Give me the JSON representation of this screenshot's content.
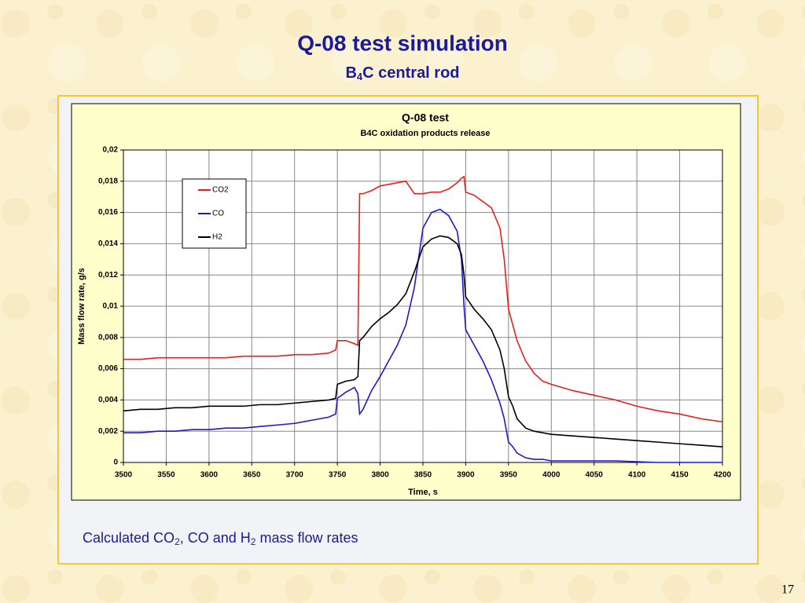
{
  "slide": {
    "title": "Q-08 test simulation",
    "subtitle": [
      "B",
      "4",
      "C central rod"
    ],
    "caption": [
      "Calculated CO",
      "2",
      ", CO and H",
      "2",
      " mass flow rates"
    ],
    "page_number": "17"
  },
  "chart_data": {
    "type": "line",
    "title": "Q-08 test",
    "subtitle": "B4C oxidation products release",
    "x_label": "Time, s",
    "y_label": "Mass flow rate, g/s",
    "x": [
      3500,
      3520,
      3540,
      3560,
      3580,
      3600,
      3620,
      3640,
      3660,
      3680,
      3700,
      3720,
      3740,
      3748,
      3750,
      3760,
      3770,
      3774,
      3776,
      3780,
      3790,
      3800,
      3810,
      3820,
      3830,
      3840,
      3850,
      3860,
      3870,
      3880,
      3890,
      3895,
      3898,
      3900,
      3910,
      3920,
      3930,
      3940,
      3945,
      3950,
      3955,
      3960,
      3970,
      3980,
      3990,
      4000,
      4025,
      4050,
      4075,
      4100,
      4125,
      4150,
      4175,
      4200
    ],
    "series": [
      {
        "name": "CO2",
        "color": "#e8201c",
        "values": [
          0.0066,
          0.0066,
          0.0067,
          0.0067,
          0.0067,
          0.0067,
          0.0067,
          0.0068,
          0.0068,
          0.0068,
          0.0069,
          0.0069,
          0.007,
          0.0072,
          0.0078,
          0.0078,
          0.0076,
          0.0075,
          0.0172,
          0.0172,
          0.0174,
          0.0177,
          0.0178,
          0.0179,
          0.018,
          0.0172,
          0.0172,
          0.0173,
          0.0173,
          0.0175,
          0.0179,
          0.0182,
          0.0183,
          0.0173,
          0.0171,
          0.0167,
          0.0163,
          0.015,
          0.013,
          0.0098,
          0.0088,
          0.0078,
          0.0065,
          0.0057,
          0.0052,
          0.005,
          0.0046,
          0.0043,
          0.004,
          0.0036,
          0.0033,
          0.0031,
          0.0028,
          0.0026
        ]
      },
      {
        "name": "CO",
        "color": "#1a1acc",
        "values": [
          0.0019,
          0.0019,
          0.002,
          0.002,
          0.0021,
          0.0021,
          0.0022,
          0.0022,
          0.0023,
          0.0024,
          0.0025,
          0.0027,
          0.0029,
          0.0031,
          0.0041,
          0.0045,
          0.0048,
          0.0044,
          0.0031,
          0.0034,
          0.0046,
          0.0055,
          0.0065,
          0.0075,
          0.0088,
          0.0112,
          0.015,
          0.016,
          0.0162,
          0.0158,
          0.0148,
          0.013,
          0.01,
          0.0085,
          0.0075,
          0.0065,
          0.0053,
          0.0038,
          0.0028,
          0.0013,
          0.001,
          0.0006,
          0.0003,
          0.0002,
          0.0002,
          0.0001,
          0.0001,
          0.0001,
          0.0001,
          5e-05,
          0,
          0,
          0,
          0
        ]
      },
      {
        "name": "H2",
        "color": "#000000",
        "values": [
          0.0033,
          0.0034,
          0.0034,
          0.0035,
          0.0035,
          0.0036,
          0.0036,
          0.0036,
          0.0037,
          0.0037,
          0.0038,
          0.0039,
          0.004,
          0.0041,
          0.005,
          0.0052,
          0.0053,
          0.0055,
          0.0078,
          0.008,
          0.0087,
          0.0092,
          0.0096,
          0.0101,
          0.0108,
          0.0122,
          0.0138,
          0.0143,
          0.0145,
          0.0144,
          0.014,
          0.0133,
          0.012,
          0.0106,
          0.0098,
          0.0092,
          0.0085,
          0.0072,
          0.006,
          0.0042,
          0.0036,
          0.0028,
          0.0022,
          0.002,
          0.0019,
          0.0018,
          0.0017,
          0.0016,
          0.0015,
          0.0014,
          0.0013,
          0.0012,
          0.0011,
          0.001
        ]
      }
    ],
    "xlim": [
      3500,
      4200
    ],
    "xticks": [
      3500,
      3550,
      3600,
      3650,
      3700,
      3750,
      3800,
      3850,
      3900,
      3950,
      4000,
      4050,
      4100,
      4150,
      4200
    ],
    "ylim": [
      0,
      0.02
    ],
    "yticks": [
      0,
      {
        "value": 0.002,
        "label": "0,002"
      },
      {
        "value": 0.004,
        "label": "0,004"
      },
      {
        "value": 0.006,
        "label": "0,006"
      },
      {
        "value": 0.008,
        "label": "0,008"
      },
      {
        "value": 0.01,
        "label": "0,01"
      },
      {
        "value": 0.012,
        "label": "0,012"
      },
      {
        "value": 0.014,
        "label": "0,014"
      },
      {
        "value": 0.016,
        "label": "0,016"
      },
      {
        "value": 0.018,
        "label": "0,018"
      },
      {
        "value": 0.02,
        "label": "0,02"
      }
    ],
    "grid": true,
    "legend": "upper left"
  }
}
